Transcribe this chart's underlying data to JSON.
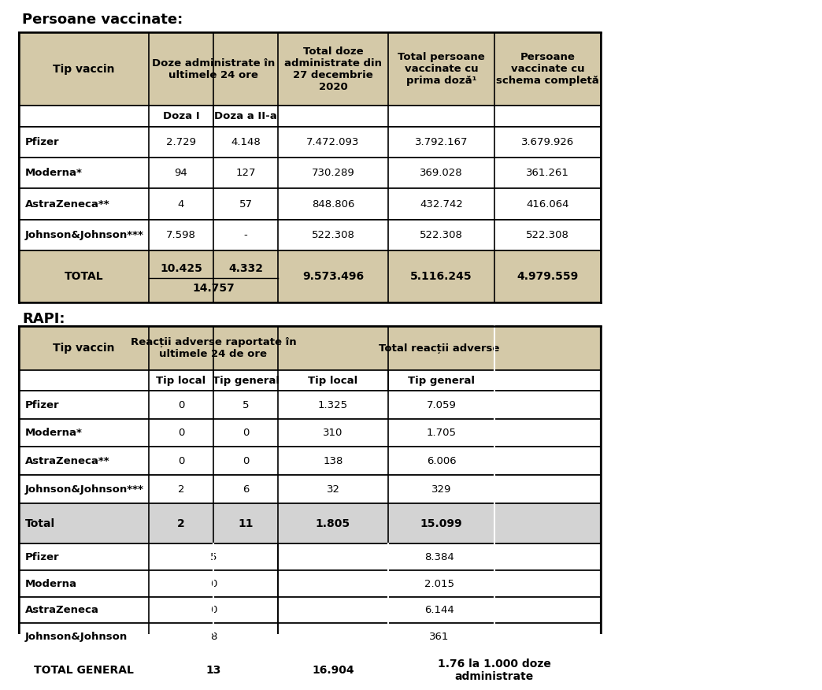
{
  "title1": "Persoane vaccinate:",
  "title2": "RAPI:",
  "bg_color": "#ffffff",
  "table1_header_bg": "#d4c9a8",
  "table1_total_bg": "#d4c9a8",
  "table2_total_bg": "#d3d3d3",
  "table2_totgen_bg": "#d4c9a8",
  "border_color": "#000000",
  "text_color": "#000000",
  "t1_col_headers": [
    "Tip vaccin",
    "Doze administrate în\nultimele 24 ore",
    "Total doze\nadministrate din\n27 decembrie\n2020",
    "Total persoane\nvaccinate cu\nprima doză¹",
    "Persoane\nvaccinate cu\nschema completă"
  ],
  "t1_sub_headers": [
    "Doza I",
    "Doza a II-a"
  ],
  "t1_rows": [
    [
      "Pfizer",
      "2.729",
      "4.148",
      "7.472.093",
      "3.792.167",
      "3.679.926"
    ],
    [
      "Moderna*",
      "94",
      "127",
      "730.289",
      "369.028",
      "361.261"
    ],
    [
      "AstraZeneca**",
      "4",
      "57",
      "848.806",
      "432.742",
      "416.064"
    ],
    [
      "Johnson&Johnson***",
      "7.598",
      "-",
      "522.308",
      "522.308",
      "522.308"
    ]
  ],
  "t1_total_row": [
    "TOTAL",
    "10.425",
    "4.332",
    "14.757",
    "9.573.496",
    "5.116.245",
    "4.979.559"
  ],
  "t2_col_headers": [
    "Tip vaccin",
    "Reacții adverse raportate în\nultimele 24 de ore",
    "Total reacții adverse"
  ],
  "t2_sub_headers": [
    "Tip local",
    "Tip general",
    "Tip local",
    "Tip general"
  ],
  "t2_rows": [
    [
      "Pfizer",
      "0",
      "5",
      "1.325",
      "7.059"
    ],
    [
      "Moderna*",
      "0",
      "0",
      "310",
      "1.705"
    ],
    [
      "AstraZeneca**",
      "0",
      "0",
      "138",
      "6.006"
    ],
    [
      "Johnson&Johnson***",
      "2",
      "6",
      "32",
      "329"
    ]
  ],
  "t2_total_row": [
    "Total",
    "2",
    "11",
    "1.805",
    "15.099"
  ],
  "t2_rows2": [
    [
      "Pfizer",
      "5",
      "8.384"
    ],
    [
      "Moderna",
      "0",
      "2.015"
    ],
    [
      "AstraZeneca",
      "0",
      "6.144"
    ],
    [
      "Johnson&Johnson",
      "8",
      "361"
    ]
  ],
  "t2_total_gen": [
    "TOTAL GENERAL",
    "13",
    "16.904",
    "1.76 la 1.000 doze\nadministrate"
  ]
}
